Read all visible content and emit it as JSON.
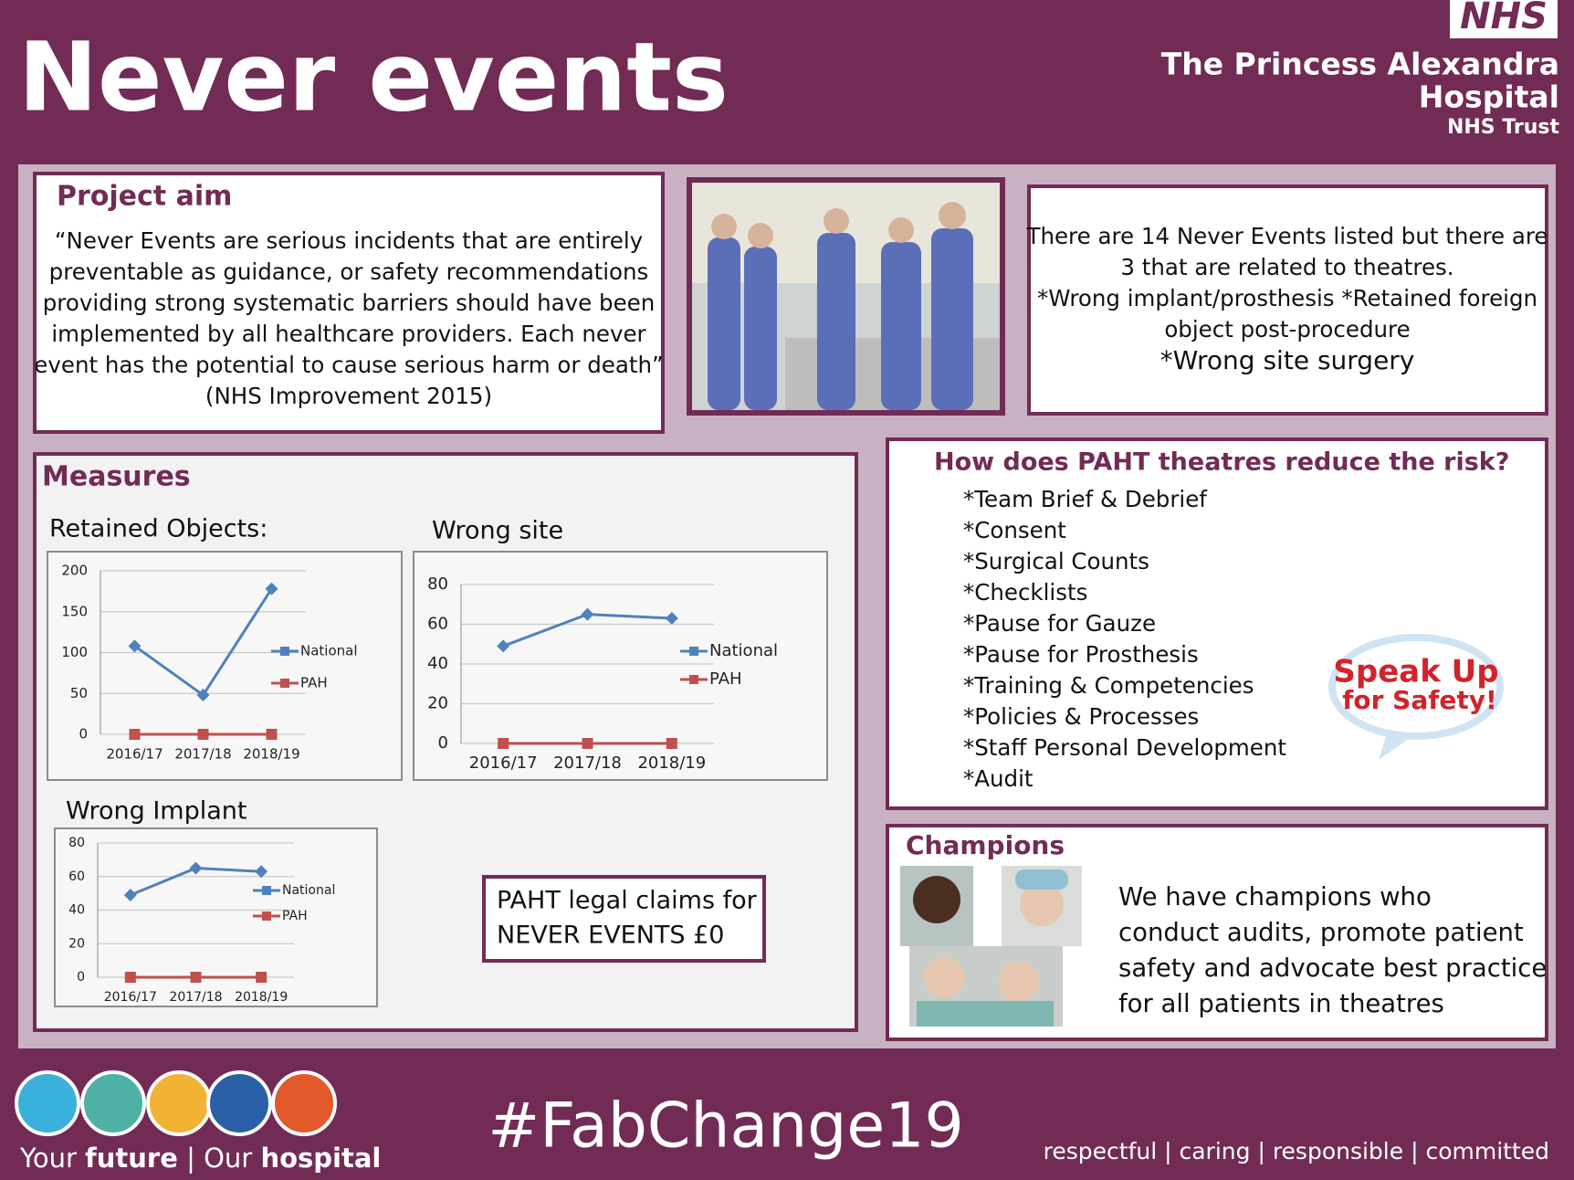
{
  "header": {
    "title": "Never events",
    "logo": "NHS",
    "org_lines": [
      "The Princess Alexandra",
      "Hospital",
      "NHS Trust"
    ]
  },
  "project_aim": {
    "heading": "Project aim",
    "lines": [
      "“Never Events are serious incidents that are entirely",
      "preventable as guidance, or safety recommendations",
      "providing strong systematic barriers should have been",
      "implemented by all healthcare providers.  Each never",
      "event has the potential to cause serious harm or death”",
      "(NHS Improvement 2015)"
    ]
  },
  "theatres_info": {
    "lines": [
      "There are 14 Never Events listed but there are",
      "3 that are related to theatres.",
      "*Wrong implant/prosthesis  *Retained foreign",
      "object post-procedure",
      "*Wrong site surgery"
    ]
  },
  "measures": {
    "heading": "Measures"
  },
  "chart_data": [
    {
      "type": "line",
      "title": "Retained Objects:",
      "categories": [
        "2016/17",
        "2017/18",
        "2018/19"
      ],
      "ylim": [
        0,
        200
      ],
      "yticks": [
        0,
        50,
        100,
        150,
        200
      ],
      "grid": true,
      "legend": "right",
      "series": [
        {
          "name": "National",
          "color": "#4f81bd",
          "values": [
            108,
            48,
            178
          ]
        },
        {
          "name": "PAH",
          "color": "#c0504d",
          "values": [
            0,
            0,
            0
          ]
        }
      ]
    },
    {
      "type": "line",
      "title": "Wrong site",
      "categories": [
        "2016/17",
        "2017/18",
        "2018/19"
      ],
      "ylim": [
        0,
        80
      ],
      "yticks": [
        0,
        20,
        40,
        60,
        80
      ],
      "grid": true,
      "legend": "right",
      "series": [
        {
          "name": "National",
          "color": "#4f81bd",
          "values": [
            49,
            65,
            63
          ]
        },
        {
          "name": "PAH",
          "color": "#c0504d",
          "values": [
            0,
            0,
            0
          ]
        }
      ]
    },
    {
      "type": "line",
      "title": "Wrong Implant",
      "categories": [
        "2016/17",
        "2017/18",
        "2018/19"
      ],
      "ylim": [
        0,
        80
      ],
      "yticks": [
        0,
        20,
        40,
        60,
        80
      ],
      "grid": true,
      "legend": "right",
      "series": [
        {
          "name": "National",
          "color": "#4f81bd",
          "values": [
            49,
            65,
            63
          ]
        },
        {
          "name": "PAH",
          "color": "#c0504d",
          "values": [
            0,
            0,
            0
          ]
        }
      ]
    }
  ],
  "legal_claims": {
    "lines": [
      "PAHT legal claims for",
      "NEVER EVENTS £0"
    ]
  },
  "risk": {
    "heading": "How does PAHT theatres reduce the risk?",
    "items": [
      "*Team Brief & Debrief",
      "*Consent",
      "*Surgical Counts",
      "*Checklists",
      "*Pause for Gauze",
      "*Pause for Prosthesis",
      "*Training & Competencies",
      "*Policies & Processes",
      "*Staff Personal Development",
      "*Audit"
    ],
    "badge": [
      "Speak Up",
      "for Safety!"
    ]
  },
  "champions": {
    "heading": "Champions",
    "lines": [
      "We have champions who",
      "conduct audits, promote patient",
      "safety and advocate best practice",
      "for all patients in theatres"
    ]
  },
  "footer": {
    "tagline": [
      "Your ",
      "future",
      " | Our ",
      "hospital"
    ],
    "hashtag": "#FabChange19",
    "values": "respectful | caring | responsible | committed"
  }
}
